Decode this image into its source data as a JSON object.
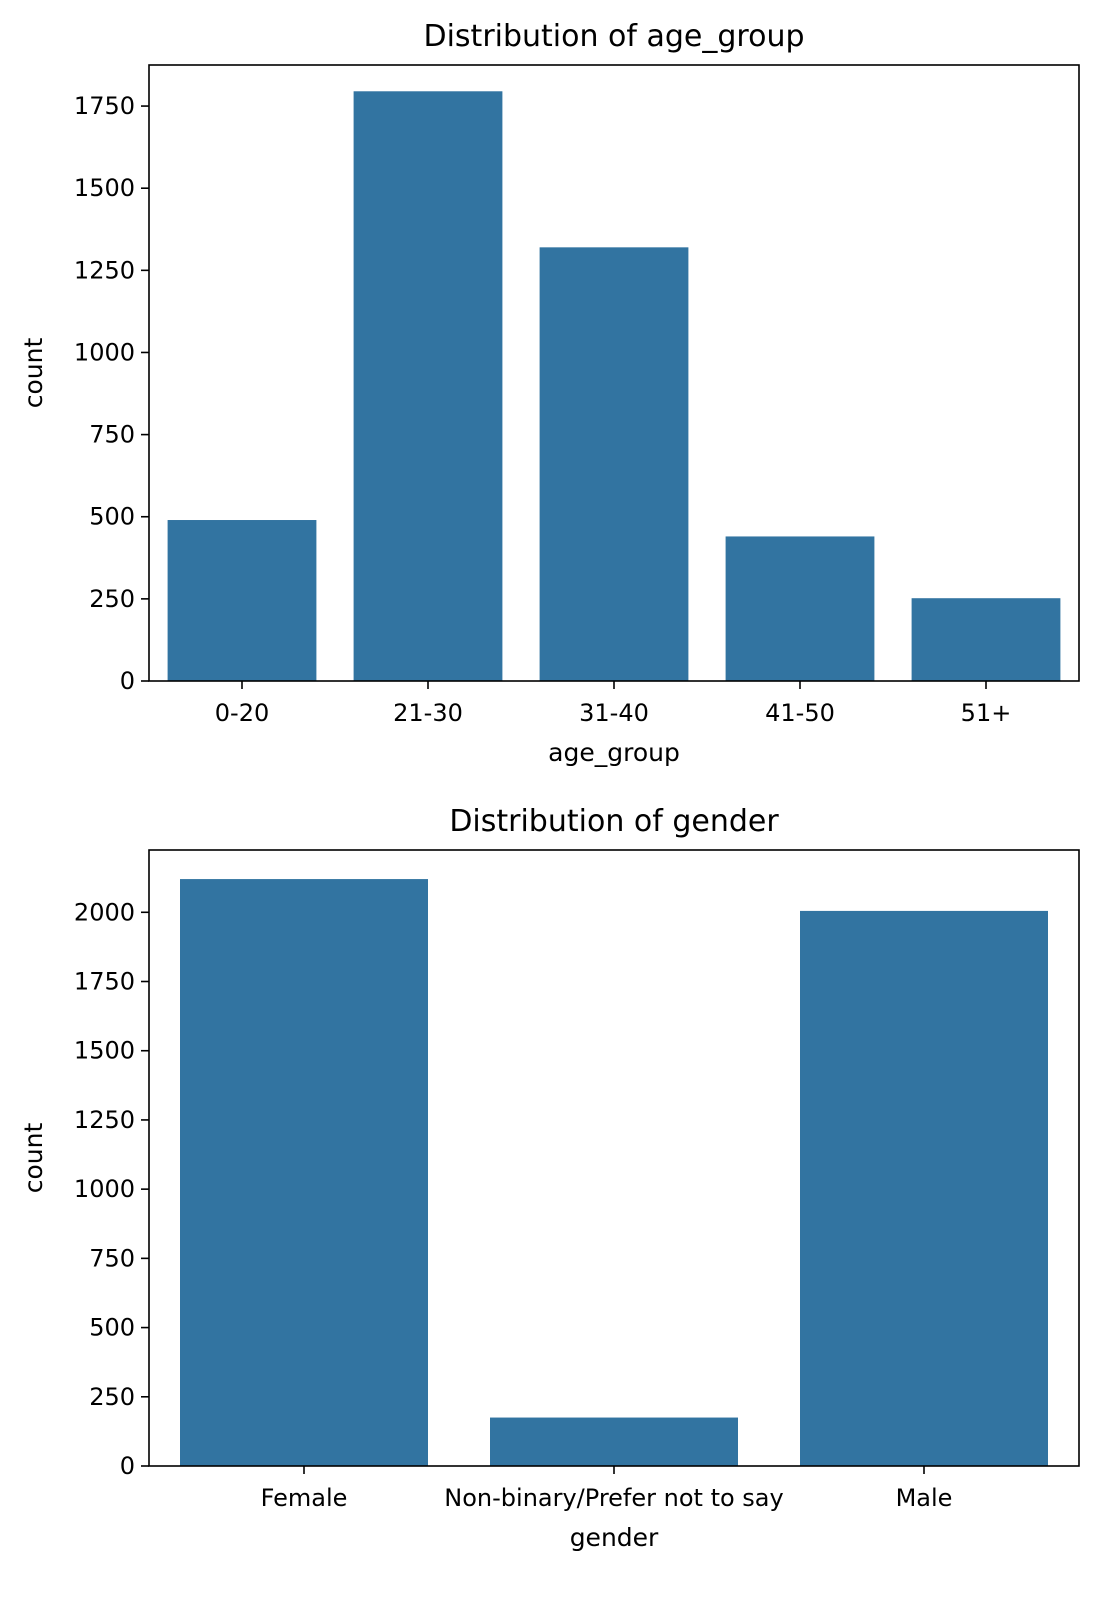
{
  "bar_color": "#3274a1",
  "chart_data": [
    {
      "type": "bar",
      "title": "Distribution of age_group",
      "xlabel": "age_group",
      "ylabel": "count",
      "categories": [
        "0-20",
        "21-30",
        "31-40",
        "41-50",
        "51+"
      ],
      "values": [
        490,
        1795,
        1320,
        440,
        252
      ],
      "ylim": [
        0,
        1875
      ],
      "yticks": [
        0,
        250,
        500,
        750,
        1000,
        1250,
        1500,
        1750
      ],
      "grid": false,
      "legend": "none"
    },
    {
      "type": "bar",
      "title": "Distribution of gender",
      "xlabel": "gender",
      "ylabel": "count",
      "categories": [
        "Female",
        "Non-binary/Prefer not to say",
        "Male"
      ],
      "values": [
        2120,
        175,
        2005
      ],
      "ylim": [
        0,
        2225
      ],
      "yticks": [
        0,
        250,
        500,
        750,
        1000,
        1250,
        1500,
        1750,
        2000
      ],
      "grid": false,
      "legend": "none"
    }
  ]
}
